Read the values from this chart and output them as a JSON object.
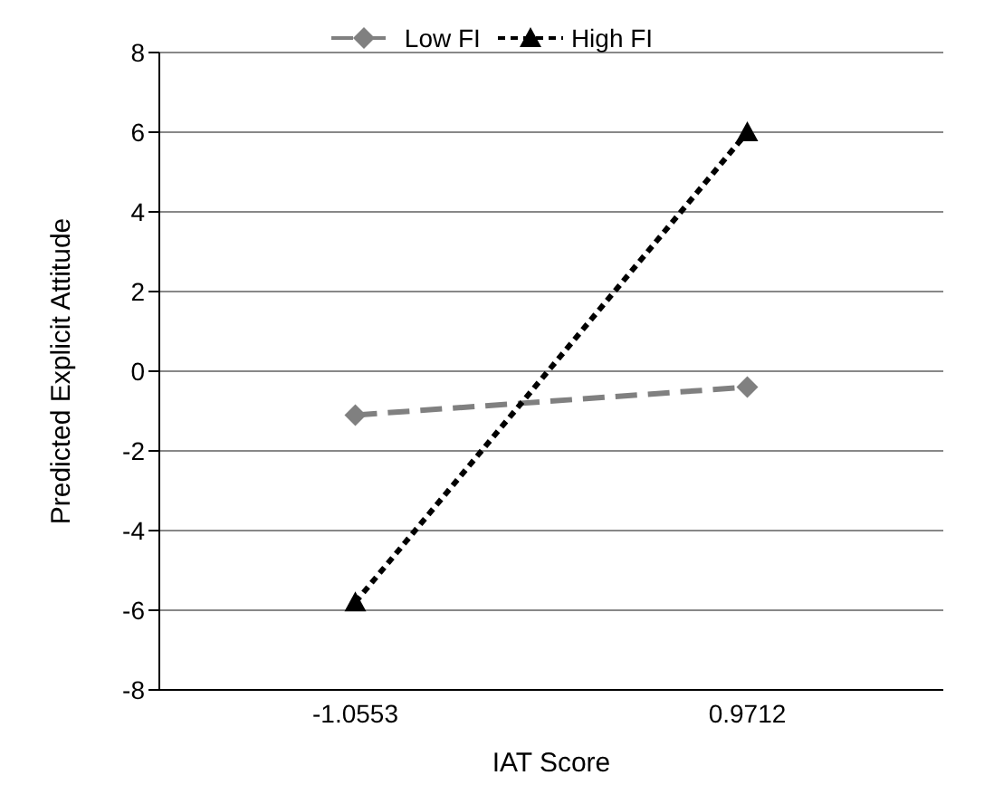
{
  "chart_data": {
    "type": "line",
    "xlabel": "IAT Score",
    "ylabel": "Predicted Explicit Attitude",
    "categories": [
      "-1.0553",
      "0.9712"
    ],
    "series": [
      {
        "name": "Low FI",
        "color": "#808080",
        "values": [
          -1.1,
          -0.4
        ],
        "marker": "diamond",
        "line_style": "dashed"
      },
      {
        "name": "High FI",
        "color": "#000000",
        "values": [
          -5.8,
          6.0
        ],
        "marker": "triangle",
        "line_style": "dotted"
      }
    ],
    "ylim": [
      -8,
      8
    ],
    "yticks": [
      -8,
      -6,
      -4,
      -2,
      0,
      2,
      4,
      6,
      8
    ],
    "grid": "y",
    "legend": "top"
  }
}
